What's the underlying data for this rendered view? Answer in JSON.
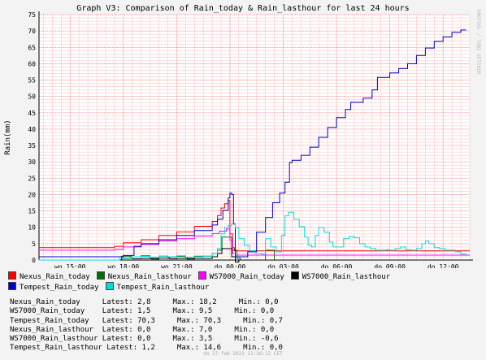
{
  "chart_data": {
    "type": "line",
    "title": "Graph V3: Comparison of Rain_today & Rain_lasthour for last 24 hours",
    "ylabel": "Rain(mm)",
    "ylim": [
      0,
      75
    ],
    "y_ticks": [
      0,
      5,
      10,
      15,
      20,
      25,
      30,
      35,
      40,
      45,
      50,
      55,
      60,
      65,
      70,
      75
    ],
    "xlim": [
      13.25,
      37.5
    ],
    "x_tick_labels": [
      {
        "x": 15,
        "label": "wo 15:00"
      },
      {
        "x": 18,
        "label": "wo 18:00"
      },
      {
        "x": 21,
        "label": "wo 21:00"
      },
      {
        "x": 24,
        "label": "do 00:00"
      },
      {
        "x": 27,
        "label": "do 03:00"
      },
      {
        "x": 30,
        "label": "do 06:00"
      },
      {
        "x": 33,
        "label": "do 09:00"
      },
      {
        "x": 36,
        "label": "do 12:00"
      }
    ],
    "grid": true,
    "legend_position": "bottom",
    "series": [
      {
        "name": "Nexus_Rain_today",
        "color": "#ff0000",
        "points": [
          [
            13.25,
            3.8
          ],
          [
            17.3,
            3.8
          ],
          [
            17.5,
            4.2
          ],
          [
            18.0,
            5.3
          ],
          [
            19.0,
            6.2
          ],
          [
            20.0,
            7.5
          ],
          [
            21.0,
            8.6
          ],
          [
            22.0,
            10.3
          ],
          [
            23.0,
            11.8
          ],
          [
            23.3,
            13.6
          ],
          [
            23.5,
            15.9
          ],
          [
            23.7,
            17.2
          ],
          [
            23.9,
            18.2
          ],
          [
            24.0,
            8.0
          ],
          [
            24.15,
            3.8
          ],
          [
            24.25,
            2.8
          ],
          [
            37.5,
            2.8
          ]
        ]
      },
      {
        "name": "Nexus_Rain_lasthour",
        "color": "#007000",
        "points": [
          [
            13.25,
            0
          ],
          [
            17.6,
            0
          ],
          [
            17.9,
            1.2
          ],
          [
            18.4,
            1.0
          ],
          [
            19.0,
            1.3
          ],
          [
            19.5,
            0.6
          ],
          [
            20.0,
            1.2
          ],
          [
            20.5,
            0.9
          ],
          [
            21.0,
            1.1
          ],
          [
            21.5,
            0.6
          ],
          [
            22.0,
            1.2
          ],
          [
            22.5,
            1.2
          ],
          [
            23.0,
            2.0
          ],
          [
            23.3,
            3.0
          ],
          [
            23.55,
            7.0
          ],
          [
            23.85,
            7.0
          ],
          [
            24.1,
            3.0
          ],
          [
            24.4,
            0.5
          ],
          [
            24.6,
            0
          ],
          [
            25.8,
            0
          ],
          [
            26.0,
            3.0
          ],
          [
            26.3,
            3.0
          ],
          [
            26.5,
            0
          ],
          [
            37.5,
            0
          ]
        ]
      },
      {
        "name": "WS7000_Rain_today",
        "color": "#ff00ff",
        "points": [
          [
            13.25,
            3.0
          ],
          [
            17.3,
            3.0
          ],
          [
            17.5,
            3.3
          ],
          [
            18.0,
            4.0
          ],
          [
            19.0,
            4.8
          ],
          [
            20.0,
            5.8
          ],
          [
            21.0,
            6.5
          ],
          [
            22.0,
            7.4
          ],
          [
            23.0,
            8.1
          ],
          [
            23.4,
            8.8
          ],
          [
            23.8,
            9.5
          ],
          [
            24.0,
            6.0
          ],
          [
            24.15,
            2.0
          ],
          [
            24.3,
            1.5
          ],
          [
            37.5,
            1.5
          ]
        ]
      },
      {
        "name": "WS7000_Rain_lasthour",
        "color": "#000000",
        "points": [
          [
            13.25,
            0
          ],
          [
            17.7,
            0
          ],
          [
            17.9,
            0.6
          ],
          [
            18.5,
            0.4
          ],
          [
            19.0,
            0.5
          ],
          [
            19.6,
            0.3
          ],
          [
            20.0,
            0.6
          ],
          [
            20.6,
            0.4
          ],
          [
            21.0,
            0.5
          ],
          [
            21.6,
            0.3
          ],
          [
            22.0,
            0.5
          ],
          [
            22.6,
            0.5
          ],
          [
            23.0,
            1.0
          ],
          [
            23.3,
            2.0
          ],
          [
            23.55,
            3.5
          ],
          [
            23.9,
            3.5
          ],
          [
            24.1,
            1.0
          ],
          [
            24.3,
            -0.6
          ],
          [
            24.5,
            0
          ],
          [
            37.5,
            0
          ]
        ]
      },
      {
        "name": "Tempest_Rain_today",
        "color": "#0000cc",
        "points": [
          [
            13.25,
            1.0
          ],
          [
            17.3,
            1.0
          ],
          [
            18.0,
            1.4
          ],
          [
            18.6,
            4.2
          ],
          [
            19.0,
            5.0
          ],
          [
            20.0,
            6.2
          ],
          [
            21.0,
            7.5
          ],
          [
            22.0,
            9.0
          ],
          [
            23.0,
            10.7
          ],
          [
            23.3,
            12.5
          ],
          [
            23.6,
            15.2
          ],
          [
            23.9,
            19.0
          ],
          [
            24.0,
            20.5
          ],
          [
            24.1,
            20.0
          ],
          [
            24.2,
            11.0
          ],
          [
            24.3,
            1.0
          ],
          [
            24.6,
            1.0
          ],
          [
            25.0,
            2.5
          ],
          [
            25.5,
            8.5
          ],
          [
            26.0,
            13.0
          ],
          [
            26.4,
            17.5
          ],
          [
            26.8,
            20.5
          ],
          [
            27.1,
            23.8
          ],
          [
            27.35,
            29.8
          ],
          [
            27.5,
            30.5
          ],
          [
            28.0,
            32.0
          ],
          [
            28.5,
            34.5
          ],
          [
            29.0,
            37.5
          ],
          [
            29.5,
            40.5
          ],
          [
            30.0,
            43.5
          ],
          [
            30.5,
            46.0
          ],
          [
            30.8,
            48.2
          ],
          [
            31.5,
            49.5
          ],
          [
            32.0,
            52.0
          ],
          [
            32.3,
            55.8
          ],
          [
            33.0,
            57.2
          ],
          [
            33.5,
            58.5
          ],
          [
            34.0,
            60.0
          ],
          [
            34.5,
            62.5
          ],
          [
            35.0,
            64.8
          ],
          [
            35.5,
            66.8
          ],
          [
            36.0,
            68.2
          ],
          [
            36.5,
            69.6
          ],
          [
            37.0,
            70.3
          ],
          [
            37.3,
            70.3
          ]
        ]
      },
      {
        "name": "Tempest_Rain_lasthour",
        "color": "#00dddd",
        "points": [
          [
            13.25,
            0
          ],
          [
            17.3,
            0
          ],
          [
            17.8,
            0.5
          ],
          [
            18.5,
            1.0
          ],
          [
            19.0,
            1.1
          ],
          [
            19.5,
            0.8
          ],
          [
            20.0,
            1.2
          ],
          [
            20.5,
            1.0
          ],
          [
            21.0,
            1.3
          ],
          [
            21.5,
            0.8
          ],
          [
            22.0,
            1.0
          ],
          [
            22.5,
            1.2
          ],
          [
            23.0,
            2.0
          ],
          [
            23.3,
            3.5
          ],
          [
            23.5,
            8.0
          ],
          [
            23.7,
            10.0
          ],
          [
            23.9,
            10.5
          ],
          [
            24.1,
            11.2
          ],
          [
            24.3,
            9.8
          ],
          [
            24.5,
            6.5
          ],
          [
            24.8,
            4.5
          ],
          [
            25.1,
            2.8
          ],
          [
            25.4,
            2.0
          ],
          [
            25.8,
            1.8
          ],
          [
            26.0,
            6.5
          ],
          [
            26.3,
            4.0
          ],
          [
            26.6,
            2.5
          ],
          [
            26.9,
            7.5
          ],
          [
            27.1,
            13.5
          ],
          [
            27.3,
            14.6
          ],
          [
            27.6,
            12.5
          ],
          [
            27.9,
            10.2
          ],
          [
            28.2,
            7.0
          ],
          [
            28.4,
            4.5
          ],
          [
            28.6,
            4.0
          ],
          [
            28.8,
            7.5
          ],
          [
            29.0,
            10.0
          ],
          [
            29.3,
            8.5
          ],
          [
            29.6,
            5.5
          ],
          [
            29.8,
            4.0
          ],
          [
            30.1,
            4.0
          ],
          [
            30.4,
            6.5
          ],
          [
            30.7,
            7.2
          ],
          [
            31.0,
            6.8
          ],
          [
            31.3,
            5.0
          ],
          [
            31.6,
            4.0
          ],
          [
            31.9,
            3.5
          ],
          [
            32.2,
            3.0
          ],
          [
            32.5,
            3.0
          ],
          [
            32.8,
            3.2
          ],
          [
            33.0,
            3.0
          ],
          [
            33.3,
            3.5
          ],
          [
            33.6,
            4.0
          ],
          [
            33.9,
            3.2
          ],
          [
            34.2,
            3.0
          ],
          [
            34.5,
            3.5
          ],
          [
            34.8,
            5.0
          ],
          [
            35.0,
            5.8
          ],
          [
            35.2,
            5.0
          ],
          [
            35.5,
            3.8
          ],
          [
            35.8,
            3.5
          ],
          [
            36.1,
            3.0
          ],
          [
            36.4,
            3.0
          ],
          [
            36.7,
            2.5
          ],
          [
            37.0,
            1.8
          ],
          [
            37.3,
            1.2
          ]
        ]
      }
    ]
  },
  "legend": [
    {
      "label": "Nexus_Rain_today",
      "color": "#ff0000"
    },
    {
      "label": "Nexus_Rain_lasthour",
      "color": "#007000"
    },
    {
      "label": "WS7000_Rain_today",
      "color": "#ff00ff"
    },
    {
      "label": "WS7000_Rain_lasthour",
      "color": "#000000"
    },
    {
      "label": "Tempest_Rain_today",
      "color": "#0000cc"
    },
    {
      "label": "Tempest_Rain_lasthour",
      "color": "#00dddd"
    }
  ],
  "stats": [
    "Nexus_Rain_today     Latest: 2,8     Max.: 18,2     Min.: 0,0",
    "WS7000_Rain_today    Latest: 1,5     Max.: 9,5     Min.: 0,0",
    "Tempest_Rain_today   Latest: 70,3     Max.: 70,3     Min.: 0,7",
    "Nexus_Rain_lasthour  Latest: 0,0     Max.: 7,0     Min.: 0,0",
    "WS7000_Rain_lasthour Latest: 0,0     Max.: 3,5     Min.: -0,6",
    "Tempest_Rain_lasthour Latest: 1,2     Max.: 14,6     Min.: 0,0"
  ],
  "footer": "do 17 feb 2022 13:26:12 CET",
  "side_label": "RRDTOOL / TOBI OETIKER"
}
